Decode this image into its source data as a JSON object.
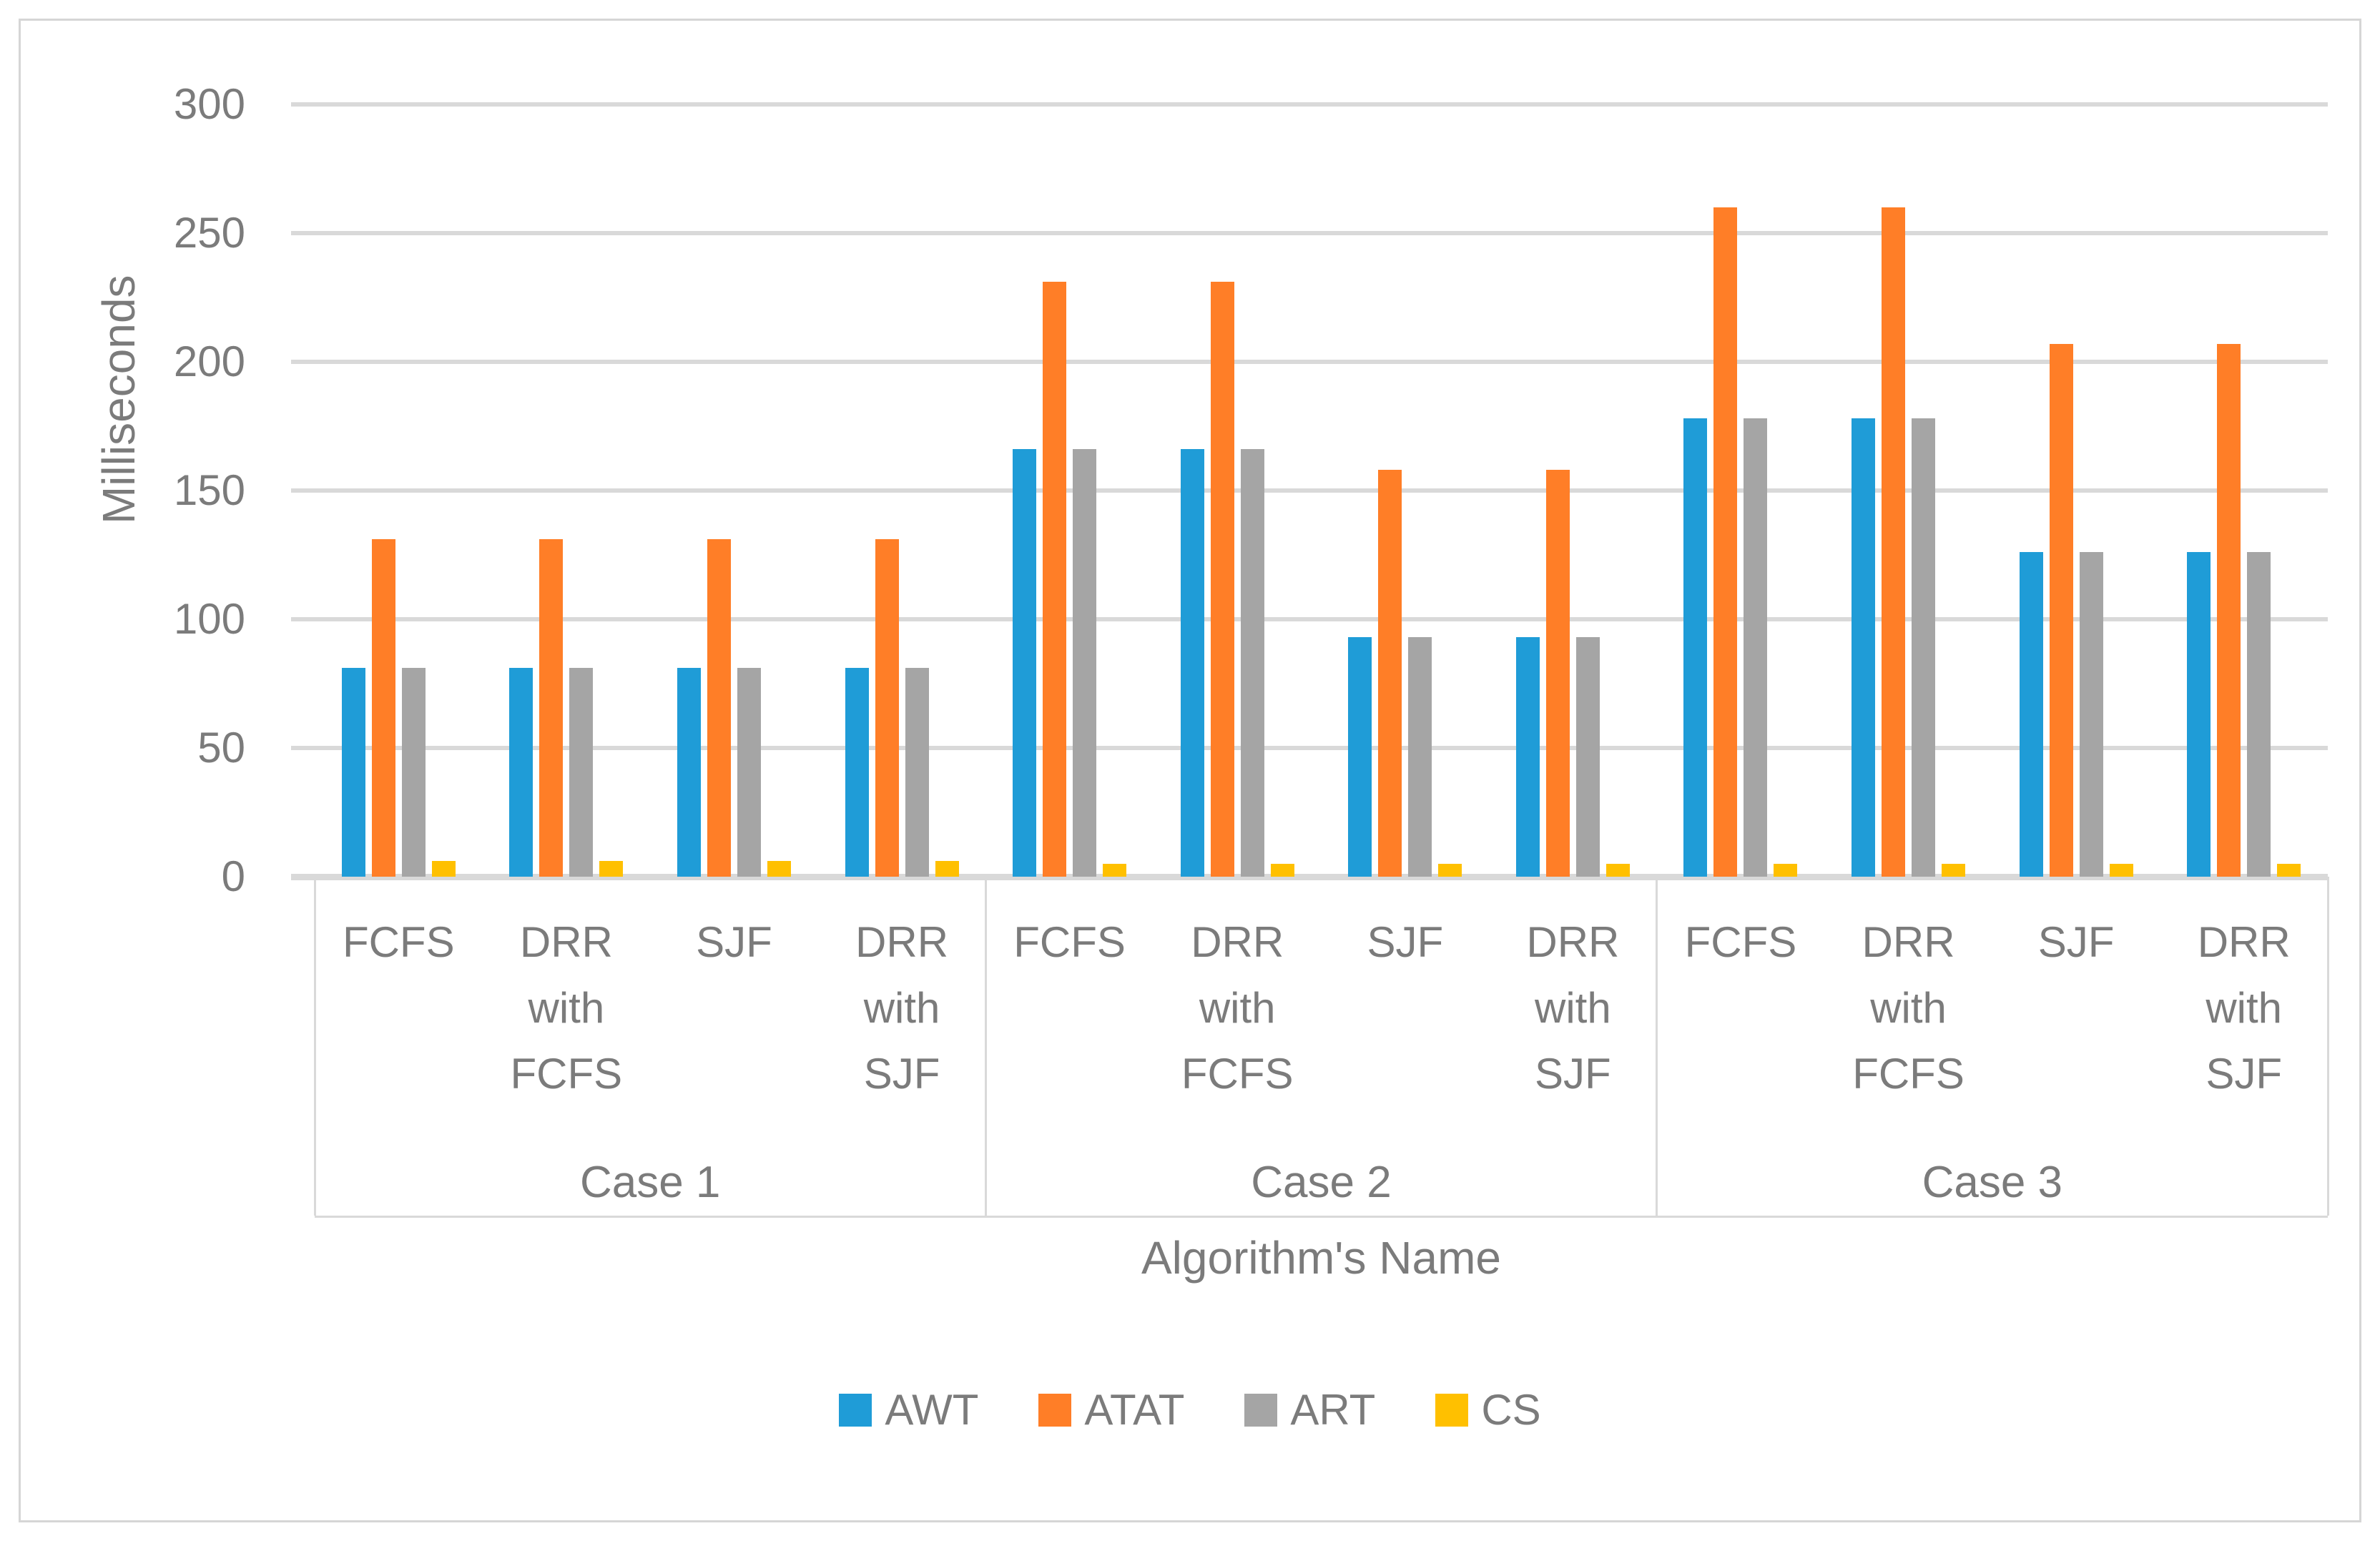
{
  "chart_data": {
    "type": "bar",
    "title": "",
    "ylabel": "Milliseconds",
    "xlabel": "Algorithm's Name",
    "ylim": [
      0,
      300
    ],
    "ytick_step": 50,
    "yticks": [
      0,
      50,
      100,
      150,
      200,
      250,
      300
    ],
    "grid": true,
    "legend_position": "bottom",
    "series": [
      {
        "name": "AWT",
        "color": "#1F9CD7"
      },
      {
        "name": "ATAT",
        "color": "#FF7E27"
      },
      {
        "name": "ART",
        "color": "#A5A5A5"
      },
      {
        "name": "CS",
        "color": "#FFC000"
      }
    ],
    "cases": [
      {
        "label": "Case 1",
        "algorithms": [
          {
            "name": "FCFS",
            "values": [
              81,
              131,
              81,
              6
            ]
          },
          {
            "name": "DRR with FCFS",
            "values": [
              81,
              131,
              81,
              6
            ]
          },
          {
            "name": "SJF",
            "values": [
              81,
              131,
              81,
              6
            ]
          },
          {
            "name": "DRR with SJF",
            "values": [
              81,
              131,
              81,
              6
            ]
          }
        ]
      },
      {
        "label": "Case 2",
        "algorithms": [
          {
            "name": "FCFS",
            "values": [
              166,
              231,
              166,
              5
            ]
          },
          {
            "name": "DRR with FCFS",
            "values": [
              166,
              231,
              166,
              5
            ]
          },
          {
            "name": "SJF",
            "values": [
              93,
              158,
              93,
              5
            ]
          },
          {
            "name": "DRR with SJF",
            "values": [
              93,
              158,
              93,
              5
            ]
          }
        ]
      },
      {
        "label": "Case 3",
        "algorithms": [
          {
            "name": "FCFS",
            "values": [
              178,
              260,
              178,
              5
            ]
          },
          {
            "name": "DRR with FCFS",
            "values": [
              178,
              260,
              178,
              5
            ]
          },
          {
            "name": "SJF",
            "values": [
              126,
              207,
              126,
              5
            ]
          },
          {
            "name": "DRR with SJF",
            "values": [
              126,
              207,
              126,
              5
            ]
          }
        ]
      }
    ]
  }
}
